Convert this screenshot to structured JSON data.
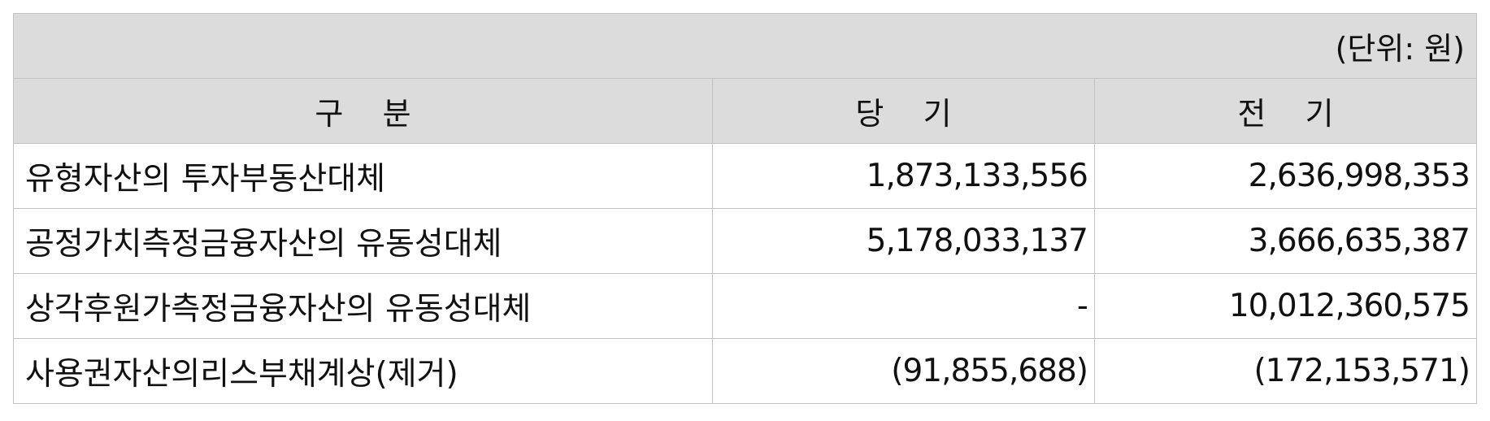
{
  "unit_note": "(단위: 원)",
  "headers": {
    "category": "구    분",
    "current": "당    기",
    "prior": "전    기"
  },
  "rows": [
    {
      "label": "유형자산의 투자부동산대체",
      "current": "1,873,133,556",
      "prior": "2,636,998,353"
    },
    {
      "label": "공정가치측정금융자산의 유동성대체",
      "current": "5,178,033,137",
      "prior": "3,666,635,387"
    },
    {
      "label": "상각후원가측정금융자산의 유동성대체",
      "current": "-",
      "prior": "10,012,360,575"
    },
    {
      "label": "사용권자산의리스부채계상(제거)",
      "current": "(91,855,688)",
      "prior": "(172,153,571)"
    }
  ]
}
